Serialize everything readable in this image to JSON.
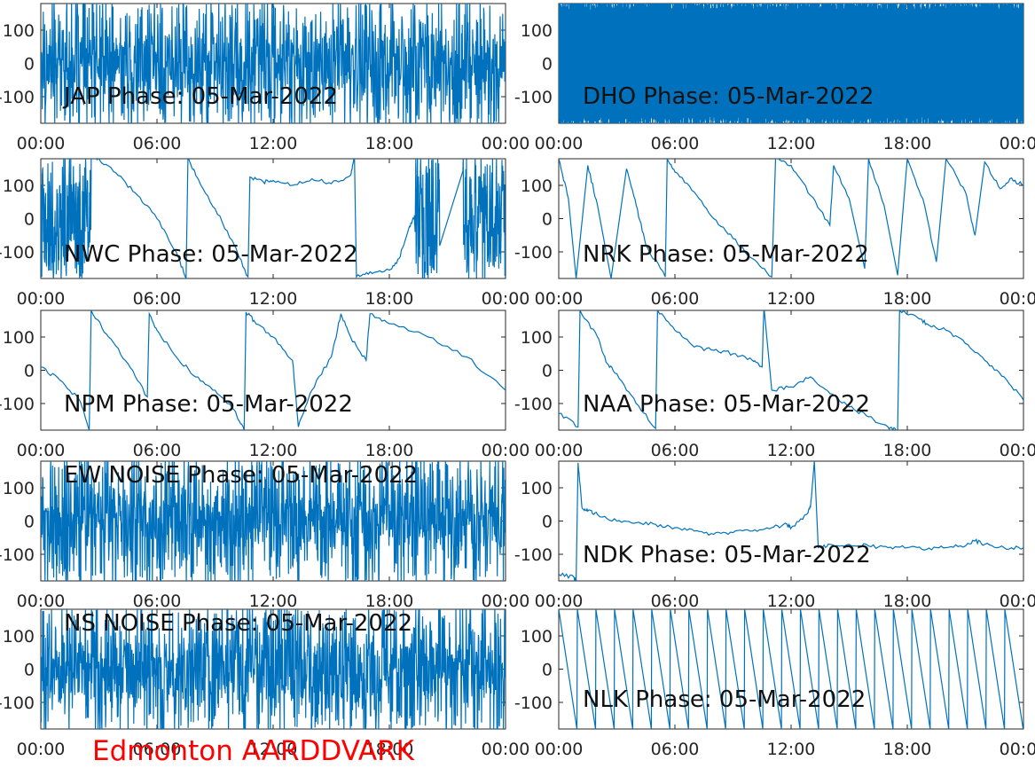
{
  "caption": "Edmonton AARDDVARK",
  "colors": {
    "trace": "#0072bd",
    "caption": "#ff0000",
    "axis": "#262626"
  },
  "chart_data": [
    {
      "type": "line",
      "title": "JAP Phase: 05-Mar-2022",
      "x_ticks": [
        "00:00",
        "06:00",
        "12:00",
        "18:00",
        "00:00"
      ],
      "y_ticks": [
        "100",
        "0",
        "-100"
      ],
      "xlim": [
        0,
        24
      ],
      "ylim": [
        -180,
        180
      ],
      "pattern": "noise",
      "x": [],
      "y": []
    },
    {
      "type": "line",
      "title": "DHO Phase: 05-Mar-2022",
      "x_ticks": [
        "00:00",
        "06:00",
        "12:00",
        "18:00",
        "00:00"
      ],
      "y_ticks": [
        "100",
        "0",
        "-100"
      ],
      "xlim": [
        0,
        24
      ],
      "ylim": [
        -180,
        180
      ],
      "pattern": "dense-wrap",
      "x": [],
      "y": []
    },
    {
      "type": "line",
      "title": "NWC Phase: 05-Mar-2022",
      "x_ticks": [
        "00:00",
        "06:00",
        "12:00",
        "18:00",
        "00:00"
      ],
      "y_ticks": [
        "100",
        "0",
        "-100"
      ],
      "xlim": [
        0,
        24
      ],
      "ylim": [
        -180,
        180
      ],
      "noise_ranges": [
        [
          0,
          2.6
        ],
        [
          19.3,
          20.6
        ],
        [
          21.8,
          24
        ]
      ],
      "x": [
        2.6,
        3.0,
        4.0,
        5.0,
        6.0,
        7.0,
        7.5,
        7.6,
        8.0,
        9.0,
        10.0,
        10.7,
        10.8,
        11.5,
        12.0,
        13.0,
        14.0,
        15.0,
        16.0,
        16.2,
        16.3,
        17.0,
        18.0,
        18.5,
        19.0,
        19.3
      ],
      "y": [
        120,
        180,
        130,
        70,
        0,
        -100,
        -180,
        180,
        130,
        30,
        -80,
        -175,
        125,
        110,
        115,
        100,
        120,
        105,
        130,
        180,
        -175,
        -160,
        -155,
        -120,
        -30,
        10
      ]
    },
    {
      "type": "line",
      "title": "NRK Phase: 05-Mar-2022",
      "x_ticks": [
        "00:00",
        "06:00",
        "12:00",
        "18:00",
        "00:00"
      ],
      "y_ticks": [
        "100",
        "0",
        "-100"
      ],
      "xlim": [
        0,
        24
      ],
      "ylim": [
        -180,
        180
      ],
      "x": [
        0,
        0.5,
        0.9,
        1.5,
        2.0,
        2.7,
        3.5,
        4.0,
        4.5,
        5.5,
        5.6,
        6.0,
        7.0,
        8.0,
        9.0,
        10.0,
        11.0,
        11.2,
        12.0,
        13.0,
        14.0,
        14.2,
        15.0,
        15.8,
        16.0,
        16.8,
        17.5,
        18.0,
        18.8,
        19.5,
        20.0,
        21.0,
        21.5,
        22.0,
        22.8,
        23.3,
        24.0
      ],
      "y": [
        180,
        60,
        -180,
        160,
        40,
        -180,
        150,
        40,
        -80,
        -175,
        180,
        140,
        80,
        0,
        -60,
        -120,
        -175,
        180,
        160,
        70,
        -20,
        160,
        60,
        -150,
        180,
        40,
        -170,
        180,
        60,
        -130,
        180,
        80,
        -50,
        170,
        90,
        120,
        100
      ]
    },
    {
      "type": "line",
      "title": "NPM Phase: 05-Mar-2022",
      "x_ticks": [
        "00:00",
        "06:00",
        "12:00",
        "18:00",
        "00:00"
      ],
      "y_ticks": [
        "100",
        "0",
        "-100"
      ],
      "xlim": [
        0,
        24
      ],
      "ylim": [
        -180,
        180
      ],
      "x": [
        0,
        1.0,
        2.0,
        2.5,
        2.6,
        3.5,
        4.5,
        5.5,
        5.6,
        6.0,
        7.0,
        8.0,
        9.0,
        10.0,
        10.5,
        10.6,
        11.0,
        12.0,
        13.0,
        13.3,
        14.0,
        15.0,
        15.5,
        16.0,
        16.8,
        17.0,
        18.0,
        20.0,
        22.0,
        24.0
      ],
      "y": [
        10,
        -30,
        -90,
        -180,
        180,
        100,
        20,
        -80,
        170,
        120,
        40,
        -20,
        -60,
        -120,
        -180,
        175,
        150,
        100,
        30,
        -170,
        -60,
        40,
        170,
        100,
        30,
        170,
        140,
        100,
        40,
        -60
      ]
    },
    {
      "type": "line",
      "title": "NAA Phase: 05-Mar-2022",
      "x_ticks": [
        "00:00",
        "06:00",
        "12:00",
        "18:00",
        "00:00"
      ],
      "y_ticks": [
        "100",
        "0",
        "-100"
      ],
      "xlim": [
        0,
        24
      ],
      "ylim": [
        -180,
        180
      ],
      "x": [
        0,
        1.0,
        1.1,
        2.0,
        2.5,
        3.0,
        4.0,
        5.0,
        5.1,
        6.0,
        7.0,
        8.0,
        9.0,
        10.0,
        10.5,
        10.6,
        11.0,
        12.0,
        13.0,
        14.0,
        15.0,
        16.0,
        17.0,
        17.5,
        17.6,
        18.5,
        19.0,
        20.0,
        21.0,
        22.0,
        23.0,
        24.0
      ],
      "y": [
        -130,
        -170,
        180,
        100,
        20,
        -10,
        -100,
        -175,
        180,
        120,
        70,
        60,
        50,
        30,
        10,
        190,
        -60,
        -50,
        -20,
        -70,
        -110,
        -140,
        -170,
        -180,
        180,
        160,
        140,
        120,
        80,
        30,
        -20,
        -90
      ]
    },
    {
      "type": "line",
      "title": "EW NOISE Phase: 05-Mar-2022",
      "x_ticks": [
        "00:00",
        "06:00",
        "12:00",
        "18:00",
        "00:00"
      ],
      "y_ticks": [
        "100",
        "0",
        "-100"
      ],
      "xlim": [
        0,
        24
      ],
      "ylim": [
        -180,
        180
      ],
      "pattern": "noise",
      "x": [],
      "y": []
    },
    {
      "type": "line",
      "title": "NDK Phase: 05-Mar-2022",
      "x_ticks": [
        "00:00",
        "06:00",
        "12:00",
        "18:00",
        "00:00"
      ],
      "y_ticks": [
        "100",
        "0",
        "-100"
      ],
      "xlim": [
        0,
        24
      ],
      "ylim": [
        -180,
        180
      ],
      "x": [
        0,
        0.8,
        0.9,
        1.0,
        1.2,
        1.5,
        2.0,
        3.0,
        4.0,
        5.0,
        6.0,
        7.0,
        8.0,
        9.0,
        10.0,
        11.0,
        11.8,
        12.0,
        12.8,
        13.0,
        13.2,
        13.4,
        14.0,
        15.0,
        16.0,
        17.0,
        18.0,
        19.0,
        20.0,
        21.0,
        21.5,
        22.0,
        23.0,
        24.0
      ],
      "y": [
        -160,
        -170,
        -180,
        175,
        40,
        30,
        20,
        0,
        -5,
        -10,
        -20,
        -30,
        -40,
        -35,
        -30,
        -20,
        -10,
        -20,
        20,
        40,
        180,
        -80,
        -70,
        -70,
        -75,
        -80,
        -80,
        -85,
        -80,
        -75,
        -60,
        -70,
        -80,
        -80
      ]
    },
    {
      "type": "line",
      "title": "NS NOISE Phase: 05-Mar-2022",
      "x_ticks": [
        "00:00",
        "06:00",
        "12:00",
        "18:00",
        "00:00"
      ],
      "y_ticks": [
        "100",
        "0",
        "-100"
      ],
      "xlim": [
        0,
        24
      ],
      "ylim": [
        -180,
        180
      ],
      "pattern": "noise",
      "x": [],
      "y": []
    },
    {
      "type": "line",
      "title": "NLK Phase: 05-Mar-2022",
      "x_ticks": [
        "00:00",
        "06:00",
        "12:00",
        "18:00",
        "00:00"
      ],
      "y_ticks": [
        "100",
        "0",
        "-100"
      ],
      "xlim": [
        0,
        24
      ],
      "ylim": [
        -180,
        180
      ],
      "pattern": "sawtooth",
      "sawtooth_cycles": 25,
      "x": [],
      "y": []
    }
  ]
}
